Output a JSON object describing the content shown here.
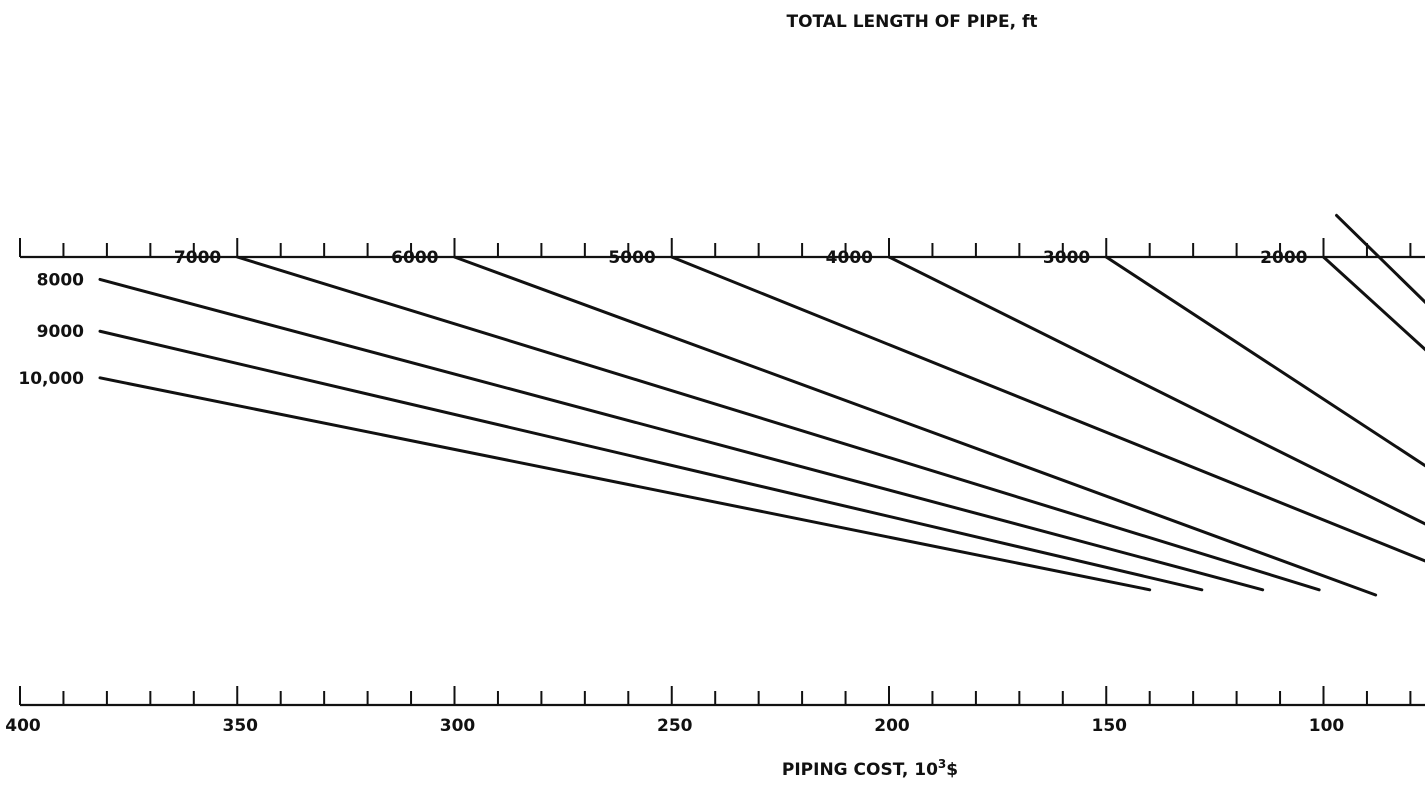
{
  "chart_data": {
    "type": "line",
    "top_title": "TOTAL LENGTH OF PIPE, ft",
    "bottom_title_prefix": "PIPING COST, 10",
    "bottom_title_sup": "3",
    "bottom_title_suffix": "$",
    "x_axis": {
      "label": "PIPING COST, 10^3$",
      "xlim": [
        400,
        75
      ],
      "tick_step": 10,
      "ticks": [
        400,
        350,
        300,
        250,
        200,
        150,
        100
      ],
      "tick_labels": [
        "400",
        "350",
        "300",
        "250",
        "200",
        "150",
        "100"
      ]
    },
    "series": [
      {
        "name": "2000",
        "points": [
          [
            100,
            7.6
          ],
          [
            75,
            9.5
          ]
        ]
      },
      {
        "name": "3000",
        "points": [
          [
            150,
            7.6
          ],
          [
            75,
            11.7
          ]
        ]
      },
      {
        "name": "4000",
        "points": [
          [
            200,
            7.6
          ],
          [
            75,
            12.8
          ]
        ]
      },
      {
        "name": "5000",
        "points": [
          [
            250,
            7.6
          ],
          [
            75,
            13.5
          ]
        ]
      },
      {
        "name": "6000",
        "points": [
          [
            300,
            7.6
          ],
          [
            88,
            14.1
          ]
        ]
      },
      {
        "name": "7000",
        "points": [
          [
            350,
            7.6
          ],
          [
            101,
            14.0
          ]
        ]
      },
      {
        "name": "8000",
        "points": [
          [
            383,
            8.0
          ],
          [
            114,
            14.0
          ]
        ]
      },
      {
        "name": "9000",
        "points": [
          [
            383,
            9.0
          ],
          [
            128,
            14.0
          ]
        ]
      },
      {
        "name": "10,000",
        "points": [
          [
            383,
            9.9
          ],
          [
            140,
            14.0
          ]
        ]
      }
    ],
    "extra_line": {
      "points": [
        [
          97,
          6.8
        ],
        [
          75,
          8.6
        ]
      ]
    },
    "grid": false
  }
}
